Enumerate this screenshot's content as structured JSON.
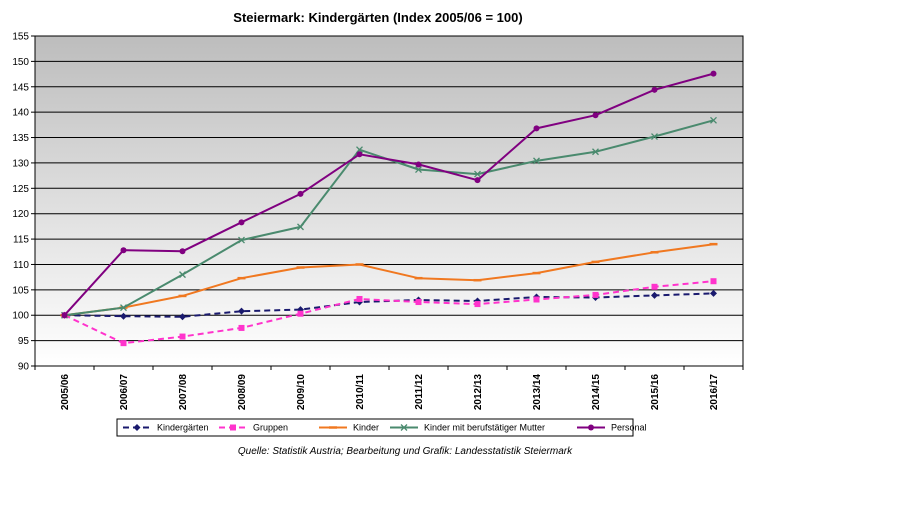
{
  "chart_data": {
    "type": "line",
    "title": "Steiermark: Kindergärten (Index 2005/06 = 100)",
    "source": "Quelle: Statistik Austria; Bearbeitung und Grafik: Landesstatistik Steiermark",
    "categories": [
      "2005/06",
      "2006/07",
      "2007/08",
      "2008/09",
      "2009/10",
      "2010/11",
      "2011/12",
      "2012/13",
      "2013/14",
      "2014/15",
      "2015/16",
      "2016/17"
    ],
    "ylim": [
      90,
      155
    ],
    "yticks": [
      90,
      95,
      100,
      105,
      110,
      115,
      120,
      125,
      130,
      135,
      140,
      145,
      150,
      155
    ],
    "grid": true,
    "legend_position": "bottom",
    "series": [
      {
        "name": "Kindergärten",
        "color": "#1a1a6e",
        "dash": "dashed",
        "marker": "diamond",
        "values": [
          100,
          99.8,
          99.7,
          100.8,
          101.1,
          102.6,
          103.0,
          102.8,
          103.6,
          103.5,
          103.9,
          104.3
        ]
      },
      {
        "name": "Gruppen",
        "color": "#ff33cc",
        "dash": "dashed",
        "marker": "square",
        "values": [
          100,
          94.5,
          95.8,
          97.5,
          100.3,
          103.2,
          102.6,
          102.2,
          103.1,
          104.0,
          105.6,
          106.7
        ]
      },
      {
        "name": "Kinder",
        "color": "#f07820",
        "dash": "solid",
        "marker": "dash",
        "values": [
          100,
          101.5,
          103.8,
          107.3,
          109.4,
          110.0,
          107.3,
          106.9,
          108.3,
          110.5,
          112.4,
          114.0
        ]
      },
      {
        "name": "Kinder mit berufstätiger Mutter",
        "color": "#4a8a6e",
        "dash": "solid",
        "marker": "x",
        "values": [
          100,
          101.5,
          108.0,
          114.8,
          117.4,
          132.6,
          128.7,
          127.8,
          130.4,
          132.2,
          135.2,
          138.4
        ]
      },
      {
        "name": "Personal",
        "color": "#800080",
        "dash": "solid",
        "marker": "circle",
        "values": [
          100,
          112.8,
          112.6,
          118.3,
          123.9,
          131.7,
          129.7,
          126.6,
          136.8,
          139.4,
          144.4,
          147.6
        ]
      }
    ]
  }
}
